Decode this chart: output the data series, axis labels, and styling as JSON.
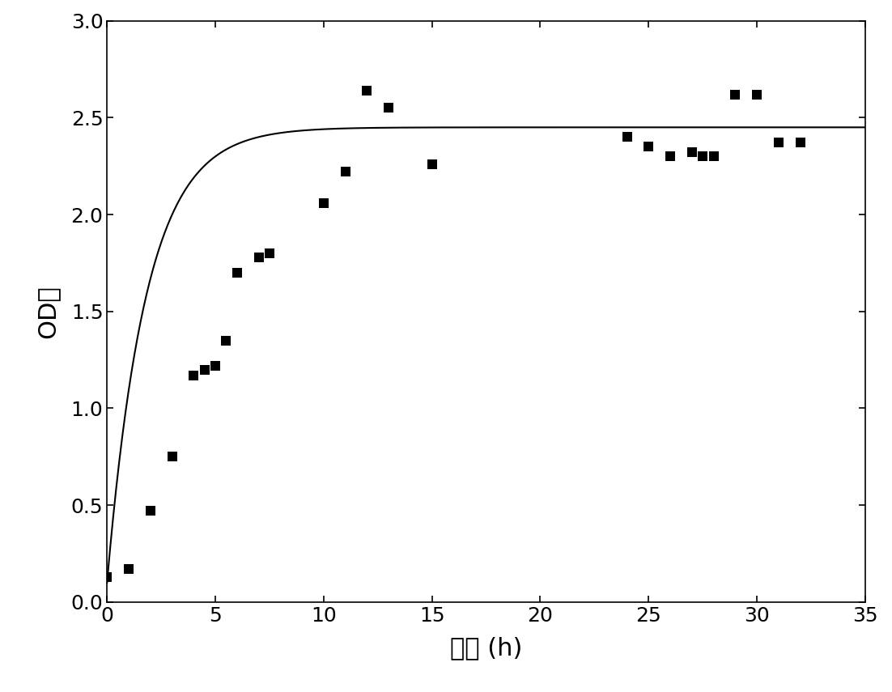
{
  "scatter_x": [
    0,
    1,
    2,
    3,
    4,
    4.5,
    5,
    5.5,
    6,
    7,
    7.5,
    10,
    11,
    12,
    13,
    15,
    24,
    25,
    26,
    27,
    27.5,
    28,
    29,
    30,
    31,
    32
  ],
  "scatter_y": [
    0.13,
    0.17,
    0.47,
    0.75,
    1.17,
    1.2,
    1.22,
    1.35,
    1.7,
    1.78,
    1.8,
    2.06,
    2.22,
    2.64,
    2.55,
    2.26,
    2.4,
    2.35,
    2.3,
    2.32,
    2.3,
    2.3,
    2.62,
    2.62,
    2.37,
    2.37
  ],
  "marker": "s",
  "marker_color": "black",
  "marker_size": 8,
  "line_color": "black",
  "line_width": 1.5,
  "xlabel": "时间 (h)",
  "ylabel": "OD値",
  "xlabel_fontsize": 22,
  "ylabel_fontsize": 22,
  "tick_fontsize": 18,
  "xlim": [
    0,
    35
  ],
  "ylim": [
    0.0,
    3.0
  ],
  "xticks": [
    0,
    5,
    10,
    15,
    20,
    25,
    30,
    35
  ],
  "yticks": [
    0.0,
    0.5,
    1.0,
    1.5,
    2.0,
    2.5,
    3.0
  ],
  "background_color": "#ffffff",
  "figsize": [
    11.02,
    8.55
  ],
  "dpi": 100,
  "curve_K": 2.45,
  "curve_r": 0.55,
  "curve_y0": 0.1
}
